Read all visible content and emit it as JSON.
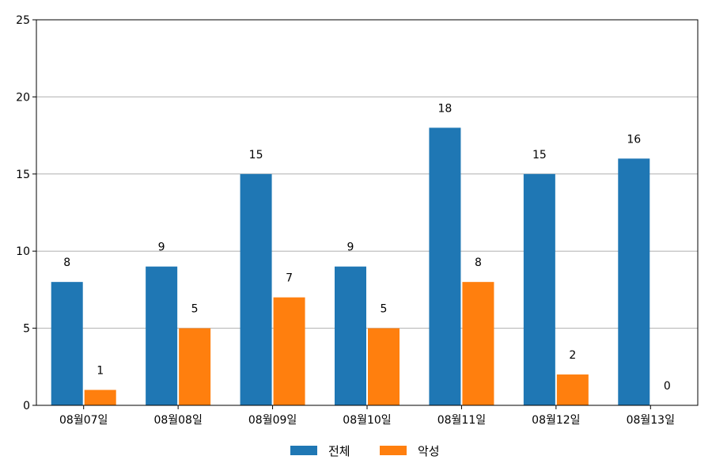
{
  "chart_data": {
    "type": "bar",
    "categories": [
      "08월07일",
      "08월08일",
      "08월09일",
      "08월10일",
      "08월11일",
      "08월12일",
      "08월13일"
    ],
    "series": [
      {
        "name": "전체",
        "color": "#1f77b4",
        "values": [
          8,
          9,
          15,
          9,
          18,
          15,
          16
        ]
      },
      {
        "name": "악성",
        "color": "#ff7f0e",
        "values": [
          1,
          5,
          7,
          5,
          8,
          2,
          0
        ]
      }
    ],
    "yticks": [
      0,
      5,
      10,
      15,
      20,
      25
    ],
    "ylim": [
      0,
      25
    ],
    "grid": "horizontal",
    "legend_position": "bottom-center",
    "title": "",
    "xlabel": "",
    "ylabel": ""
  }
}
